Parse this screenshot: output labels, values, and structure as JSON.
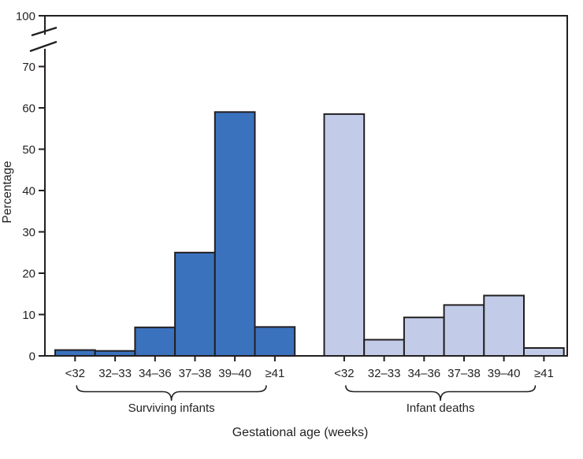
{
  "chart_data": {
    "type": "bar",
    "title": "",
    "xlabel": "Gestational age (weeks)",
    "ylabel": "Percentage",
    "categories": [
      "<32",
      "32–33",
      "34–36",
      "37–38",
      "39–40",
      "≥41"
    ],
    "series": [
      {
        "name": "Surviving infants",
        "color": "#3b72be",
        "values": [
          1.4,
          1.2,
          6.9,
          25,
          59,
          7
        ]
      },
      {
        "name": "Infant deaths",
        "color": "#c2cce9",
        "values": [
          58.5,
          3.9,
          9.3,
          12.3,
          14.6,
          1.9
        ]
      }
    ],
    "y_axis": {
      "ticks": [
        0,
        10,
        20,
        30,
        40,
        50,
        60,
        70
      ],
      "top_tick": 100,
      "axis_break": true,
      "break_between": [
        70,
        100
      ],
      "ylim": [
        0,
        100
      ]
    },
    "grid": false,
    "legend_position": "none",
    "bar_outline_color": "#231f20",
    "axis_color": "#231f20",
    "background": "#ffffff"
  }
}
